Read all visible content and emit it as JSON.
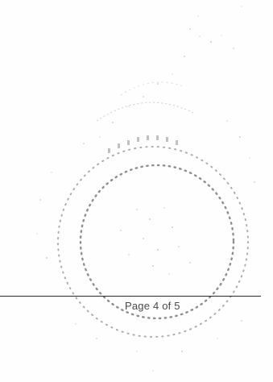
{
  "footer": {
    "page_label": "Page 4 of 5"
  },
  "seal": {
    "icon": "seal-stamp-icon",
    "dot_color": "#7a7a7a",
    "faint_color": "#c8c8c8"
  }
}
